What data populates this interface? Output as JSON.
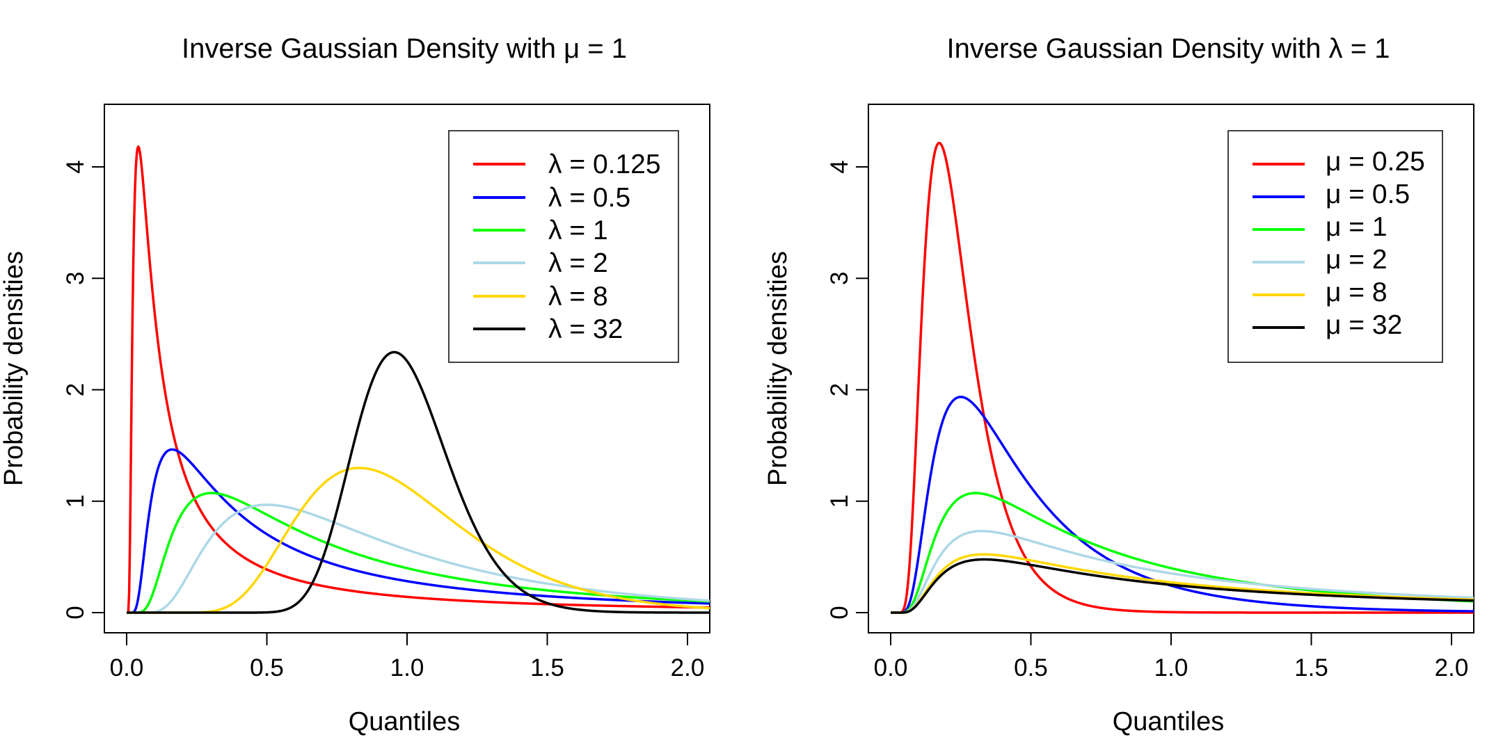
{
  "chart_data": [
    {
      "type": "line",
      "title": "Inverse Gaussian Density with μ = 1",
      "xlabel": "Quantiles",
      "ylabel": "Probability densities",
      "xlim": [
        0,
        2.08
      ],
      "ylim": [
        0,
        4.5
      ],
      "x_ticks": [
        "0.0",
        "0.5",
        "1.0",
        "1.5",
        "2.0"
      ],
      "y_ticks": [
        "0",
        "1",
        "2",
        "3",
        "4"
      ],
      "legend_position": "top-right",
      "series": [
        {
          "name": "λ = 0.125",
          "color": "#ff0000",
          "mu": 1,
          "lambda": 0.125,
          "x": [
            0.01,
            0.02,
            0.042,
            0.06,
            0.1,
            0.2,
            0.5,
            1.0,
            1.5,
            2.0,
            2.08
          ],
          "y": [
            0.67,
            3.5,
            4.19,
            3.85,
            2.87,
            1.58,
            0.49,
            0.18,
            0.09,
            0.05,
            0.05
          ]
        },
        {
          "name": "λ = 0.5",
          "color": "#0000ff",
          "mu": 1,
          "lambda": 0.5,
          "x": [
            0.05,
            0.1,
            0.167,
            0.3,
            0.5,
            1.0,
            1.5,
            2.0,
            2.08
          ],
          "y": [
            0.06,
            0.86,
            1.46,
            1.19,
            0.77,
            0.31,
            0.14,
            0.07,
            0.07
          ]
        },
        {
          "name": "λ = 1",
          "color": "#00ff00",
          "mu": 1,
          "lambda": 1,
          "x": [
            0.05,
            0.1,
            0.2,
            0.303,
            0.5,
            1.0,
            1.5,
            2.0,
            2.08
          ],
          "y": [
            0.0,
            0.02,
            0.73,
            1.08,
            0.88,
            0.4,
            0.19,
            0.1,
            0.09
          ]
        },
        {
          "name": "λ = 2",
          "color": "#add8e6",
          "mu": 1,
          "lambda": 2,
          "x": [
            0.1,
            0.2,
            0.3,
            0.5,
            0.8,
            1.0,
            1.5,
            2.0,
            2.08
          ],
          "y": [
            0.0,
            0.21,
            0.63,
            0.97,
            0.79,
            0.56,
            0.25,
            0.12,
            0.11
          ]
        },
        {
          "name": "λ = 8",
          "color": "#ffd700",
          "mu": 1,
          "lambda": 8,
          "x": [
            0.3,
            0.4,
            0.5,
            0.7,
            0.83,
            1.0,
            1.5,
            2.0,
            2.08
          ],
          "y": [
            0.0,
            0.08,
            0.4,
            1.1,
            1.3,
            1.13,
            0.3,
            0.06,
            0.05
          ]
        },
        {
          "name": "λ = 32",
          "color": "#000000",
          "mu": 1,
          "lambda": 32,
          "x": [
            0.5,
            0.6,
            0.7,
            0.85,
            0.953,
            1.1,
            1.3,
            1.5,
            2.0,
            2.08
          ],
          "y": [
            0.01,
            0.14,
            0.85,
            2.06,
            2.34,
            1.78,
            0.62,
            0.13,
            0.0,
            0.0
          ]
        }
      ]
    },
    {
      "type": "line",
      "title": "Inverse Gaussian Density with λ = 1",
      "xlabel": "Quantiles",
      "ylabel": "Probability densities",
      "xlim": [
        0,
        2.08
      ],
      "ylim": [
        0,
        4.5
      ],
      "x_ticks": [
        "0.0",
        "0.5",
        "1.0",
        "1.5",
        "2.0"
      ],
      "y_ticks": [
        "0",
        "1",
        "2",
        "3",
        "4"
      ],
      "legend_position": "top-right",
      "series": [
        {
          "name": "μ = 0.25",
          "color": "#ff0000",
          "mu": 0.25,
          "lambda": 1,
          "x": [
            0.05,
            0.1,
            0.177,
            0.3,
            0.5,
            0.7,
            1.0,
            1.5,
            2.0,
            2.08
          ],
          "y": [
            0.06,
            1.75,
            4.21,
            2.62,
            0.57,
            0.08,
            0.003,
            0.0,
            0.0,
            0.0
          ]
        },
        {
          "name": "μ = 0.5",
          "color": "#0000ff",
          "mu": 0.5,
          "lambda": 1,
          "x": [
            0.05,
            0.1,
            0.25,
            0.4,
            0.6,
            1.0,
            1.5,
            2.0,
            2.08
          ],
          "y": [
            0.0,
            0.49,
            1.93,
            1.43,
            0.84,
            0.24,
            0.06,
            0.01,
            0.01
          ]
        },
        {
          "name": "μ = 1",
          "color": "#00ff00",
          "mu": 1,
          "lambda": 1,
          "x": [
            0.05,
            0.1,
            0.2,
            0.303,
            0.5,
            1.0,
            1.5,
            2.0,
            2.08
          ],
          "y": [
            0.0,
            0.02,
            0.73,
            1.08,
            0.88,
            0.4,
            0.19,
            0.1,
            0.09
          ]
        },
        {
          "name": "μ = 2",
          "color": "#add8e6",
          "mu": 2,
          "lambda": 1,
          "x": [
            0.05,
            0.1,
            0.2,
            0.321,
            0.5,
            1.0,
            1.5,
            2.0,
            2.08
          ],
          "y": [
            0.0,
            0.02,
            0.53,
            0.74,
            0.68,
            0.44,
            0.3,
            0.2,
            0.19
          ]
        },
        {
          "name": "μ = 8",
          "color": "#ffd700",
          "mu": 8,
          "lambda": 1,
          "x": [
            0.05,
            0.1,
            0.2,
            0.33,
            0.5,
            1.0,
            1.5,
            2.0,
            2.08
          ],
          "y": [
            0.0,
            0.01,
            0.39,
            0.53,
            0.49,
            0.29,
            0.2,
            0.14,
            0.13
          ]
        },
        {
          "name": "μ = 32",
          "color": "#000000",
          "mu": 32,
          "lambda": 1,
          "x": [
            0.05,
            0.1,
            0.2,
            0.333,
            0.5,
            1.0,
            1.5,
            2.0,
            2.08
          ],
          "y": [
            0.0,
            0.01,
            0.35,
            0.48,
            0.46,
            0.27,
            0.18,
            0.13,
            0.12
          ]
        }
      ]
    }
  ]
}
